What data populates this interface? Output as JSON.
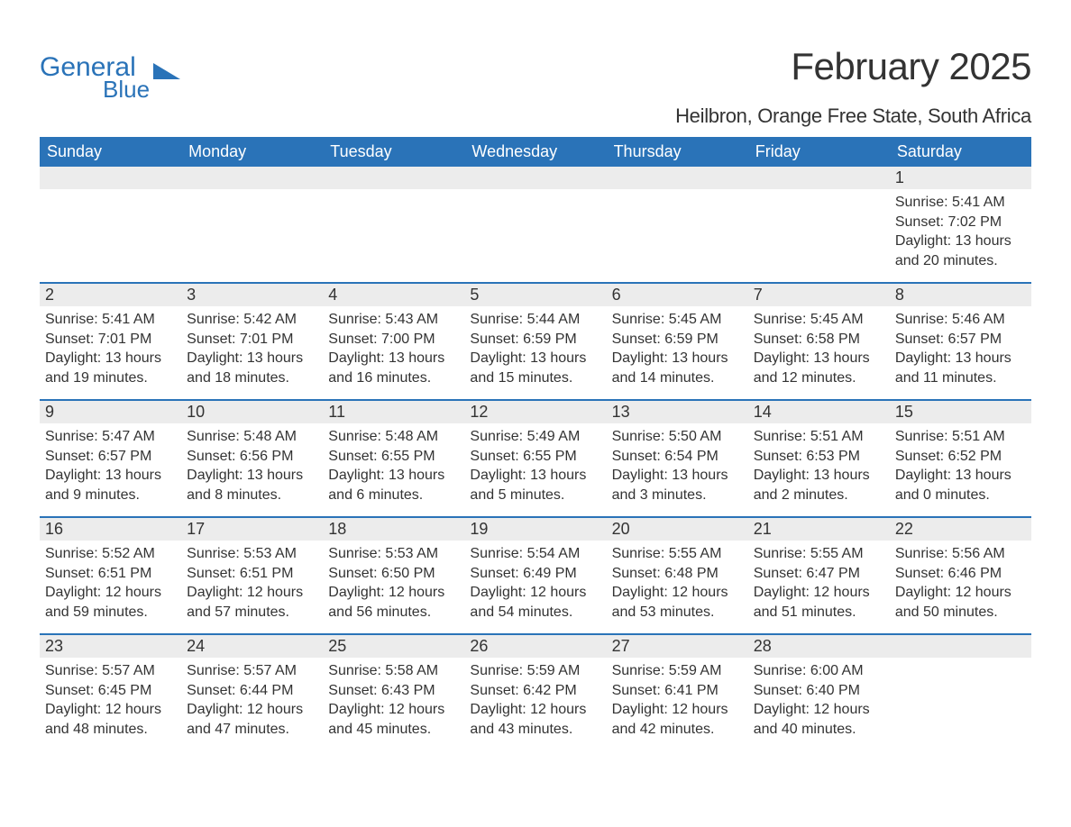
{
  "logo": {
    "general": "General",
    "blue": "Blue"
  },
  "title": "February 2025",
  "location": "Heilbron, Orange Free State, South Africa",
  "header_color": "#2a73b8",
  "header_text_color": "#ffffff",
  "daybar_color": "#ececec",
  "border_color": "#2a73b8",
  "weekdays": [
    "Sunday",
    "Monday",
    "Tuesday",
    "Wednesday",
    "Thursday",
    "Friday",
    "Saturday"
  ],
  "weeks": [
    [
      null,
      null,
      null,
      null,
      null,
      null,
      {
        "day": "1",
        "sunrise": "Sunrise: 5:41 AM",
        "sunset": "Sunset: 7:02 PM",
        "dl1": "Daylight: 13 hours",
        "dl2": "and 20 minutes."
      }
    ],
    [
      {
        "day": "2",
        "sunrise": "Sunrise: 5:41 AM",
        "sunset": "Sunset: 7:01 PM",
        "dl1": "Daylight: 13 hours",
        "dl2": "and 19 minutes."
      },
      {
        "day": "3",
        "sunrise": "Sunrise: 5:42 AM",
        "sunset": "Sunset: 7:01 PM",
        "dl1": "Daylight: 13 hours",
        "dl2": "and 18 minutes."
      },
      {
        "day": "4",
        "sunrise": "Sunrise: 5:43 AM",
        "sunset": "Sunset: 7:00 PM",
        "dl1": "Daylight: 13 hours",
        "dl2": "and 16 minutes."
      },
      {
        "day": "5",
        "sunrise": "Sunrise: 5:44 AM",
        "sunset": "Sunset: 6:59 PM",
        "dl1": "Daylight: 13 hours",
        "dl2": "and 15 minutes."
      },
      {
        "day": "6",
        "sunrise": "Sunrise: 5:45 AM",
        "sunset": "Sunset: 6:59 PM",
        "dl1": "Daylight: 13 hours",
        "dl2": "and 14 minutes."
      },
      {
        "day": "7",
        "sunrise": "Sunrise: 5:45 AM",
        "sunset": "Sunset: 6:58 PM",
        "dl1": "Daylight: 13 hours",
        "dl2": "and 12 minutes."
      },
      {
        "day": "8",
        "sunrise": "Sunrise: 5:46 AM",
        "sunset": "Sunset: 6:57 PM",
        "dl1": "Daylight: 13 hours",
        "dl2": "and 11 minutes."
      }
    ],
    [
      {
        "day": "9",
        "sunrise": "Sunrise: 5:47 AM",
        "sunset": "Sunset: 6:57 PM",
        "dl1": "Daylight: 13 hours",
        "dl2": "and 9 minutes."
      },
      {
        "day": "10",
        "sunrise": "Sunrise: 5:48 AM",
        "sunset": "Sunset: 6:56 PM",
        "dl1": "Daylight: 13 hours",
        "dl2": "and 8 minutes."
      },
      {
        "day": "11",
        "sunrise": "Sunrise: 5:48 AM",
        "sunset": "Sunset: 6:55 PM",
        "dl1": "Daylight: 13 hours",
        "dl2": "and 6 minutes."
      },
      {
        "day": "12",
        "sunrise": "Sunrise: 5:49 AM",
        "sunset": "Sunset: 6:55 PM",
        "dl1": "Daylight: 13 hours",
        "dl2": "and 5 minutes."
      },
      {
        "day": "13",
        "sunrise": "Sunrise: 5:50 AM",
        "sunset": "Sunset: 6:54 PM",
        "dl1": "Daylight: 13 hours",
        "dl2": "and 3 minutes."
      },
      {
        "day": "14",
        "sunrise": "Sunrise: 5:51 AM",
        "sunset": "Sunset: 6:53 PM",
        "dl1": "Daylight: 13 hours",
        "dl2": "and 2 minutes."
      },
      {
        "day": "15",
        "sunrise": "Sunrise: 5:51 AM",
        "sunset": "Sunset: 6:52 PM",
        "dl1": "Daylight: 13 hours",
        "dl2": "and 0 minutes."
      }
    ],
    [
      {
        "day": "16",
        "sunrise": "Sunrise: 5:52 AM",
        "sunset": "Sunset: 6:51 PM",
        "dl1": "Daylight: 12 hours",
        "dl2": "and 59 minutes."
      },
      {
        "day": "17",
        "sunrise": "Sunrise: 5:53 AM",
        "sunset": "Sunset: 6:51 PM",
        "dl1": "Daylight: 12 hours",
        "dl2": "and 57 minutes."
      },
      {
        "day": "18",
        "sunrise": "Sunrise: 5:53 AM",
        "sunset": "Sunset: 6:50 PM",
        "dl1": "Daylight: 12 hours",
        "dl2": "and 56 minutes."
      },
      {
        "day": "19",
        "sunrise": "Sunrise: 5:54 AM",
        "sunset": "Sunset: 6:49 PM",
        "dl1": "Daylight: 12 hours",
        "dl2": "and 54 minutes."
      },
      {
        "day": "20",
        "sunrise": "Sunrise: 5:55 AM",
        "sunset": "Sunset: 6:48 PM",
        "dl1": "Daylight: 12 hours",
        "dl2": "and 53 minutes."
      },
      {
        "day": "21",
        "sunrise": "Sunrise: 5:55 AM",
        "sunset": "Sunset: 6:47 PM",
        "dl1": "Daylight: 12 hours",
        "dl2": "and 51 minutes."
      },
      {
        "day": "22",
        "sunrise": "Sunrise: 5:56 AM",
        "sunset": "Sunset: 6:46 PM",
        "dl1": "Daylight: 12 hours",
        "dl2": "and 50 minutes."
      }
    ],
    [
      {
        "day": "23",
        "sunrise": "Sunrise: 5:57 AM",
        "sunset": "Sunset: 6:45 PM",
        "dl1": "Daylight: 12 hours",
        "dl2": "and 48 minutes."
      },
      {
        "day": "24",
        "sunrise": "Sunrise: 5:57 AM",
        "sunset": "Sunset: 6:44 PM",
        "dl1": "Daylight: 12 hours",
        "dl2": "and 47 minutes."
      },
      {
        "day": "25",
        "sunrise": "Sunrise: 5:58 AM",
        "sunset": "Sunset: 6:43 PM",
        "dl1": "Daylight: 12 hours",
        "dl2": "and 45 minutes."
      },
      {
        "day": "26",
        "sunrise": "Sunrise: 5:59 AM",
        "sunset": "Sunset: 6:42 PM",
        "dl1": "Daylight: 12 hours",
        "dl2": "and 43 minutes."
      },
      {
        "day": "27",
        "sunrise": "Sunrise: 5:59 AM",
        "sunset": "Sunset: 6:41 PM",
        "dl1": "Daylight: 12 hours",
        "dl2": "and 42 minutes."
      },
      {
        "day": "28",
        "sunrise": "Sunrise: 6:00 AM",
        "sunset": "Sunset: 6:40 PM",
        "dl1": "Daylight: 12 hours",
        "dl2": "and 40 minutes."
      },
      null
    ]
  ]
}
